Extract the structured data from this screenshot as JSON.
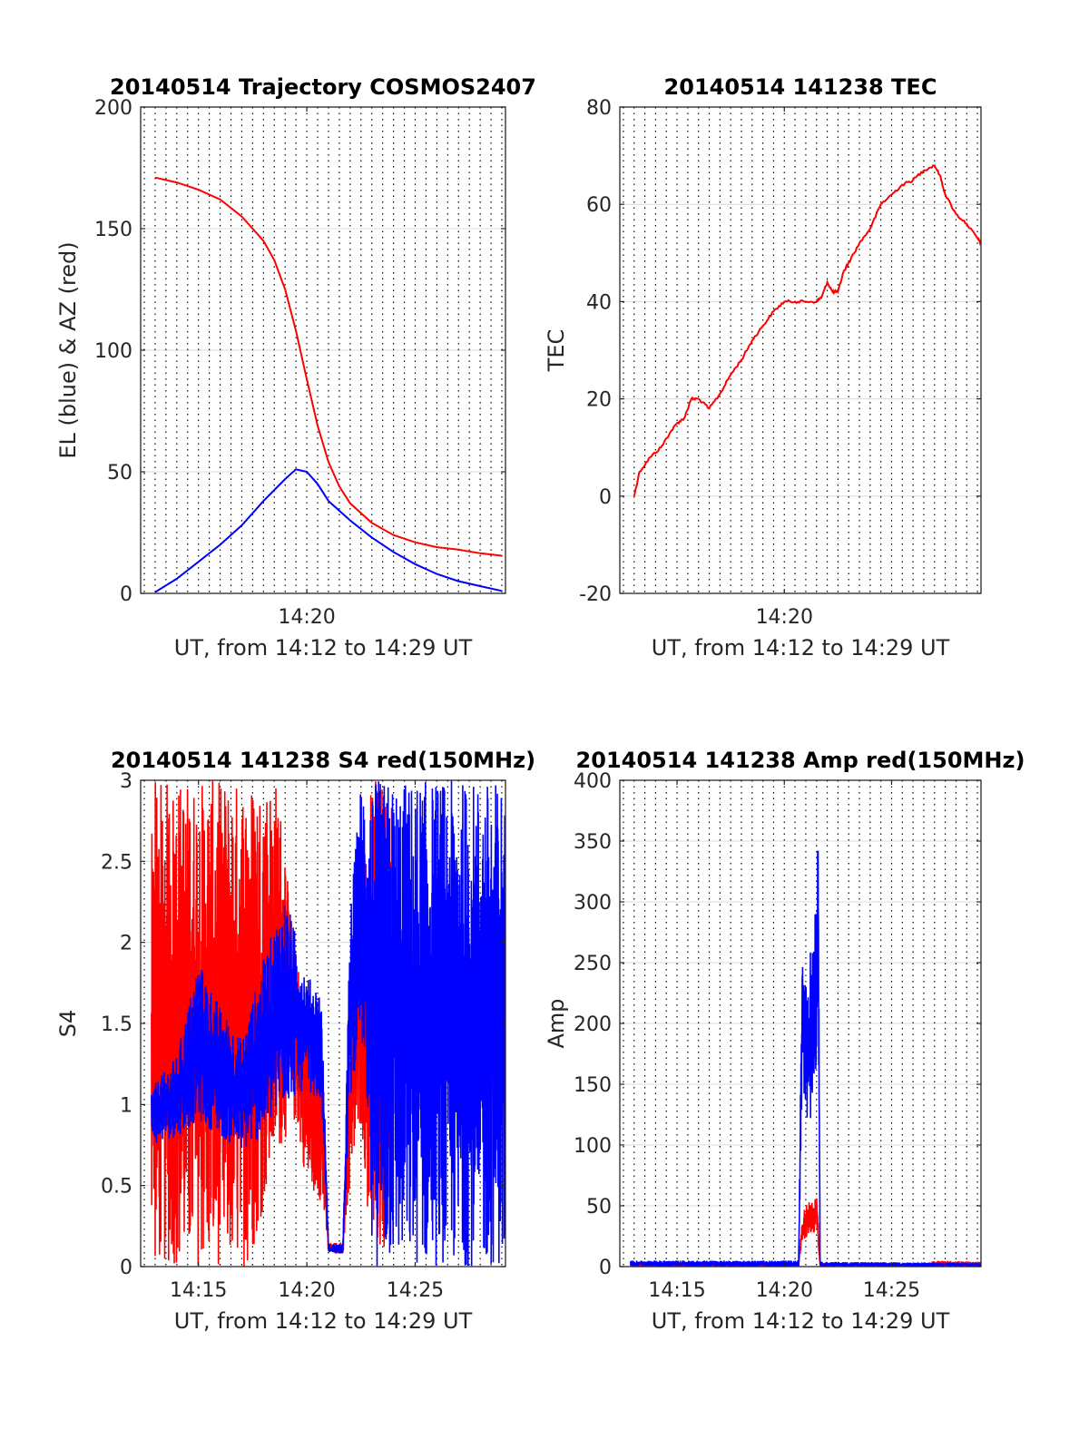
{
  "chart_data": [
    {
      "id": "traj",
      "type": "line",
      "title": "20140514 Trajectory COSMOS2407",
      "xlabel": "UT, from 14:12 to 14:29 UT",
      "ylabel": "EL (blue) & AZ (red)",
      "xlim": [
        "14:12:20",
        "14:29:10"
      ],
      "ylim": [
        0,
        200
      ],
      "yticks": [
        0,
        50,
        100,
        150,
        200
      ],
      "xticks": [
        {
          "t": "14:20",
          "label": "14:20"
        }
      ],
      "grid": "dotted vertical lines every 30 s, solid horizontal lines at y ticks",
      "series": [
        {
          "color": "#ff0000",
          "points": [
            [
              "14:13:00",
              171
            ],
            [
              "14:14:00",
              169
            ],
            [
              "14:15:00",
              166
            ],
            [
              "14:16:00",
              162
            ],
            [
              "14:17:00",
              155
            ],
            [
              "14:18:00",
              145
            ],
            [
              "14:18:30",
              137
            ],
            [
              "14:19:00",
              125
            ],
            [
              "14:19:30",
              108
            ],
            [
              "14:20:00",
              88
            ],
            [
              "14:20:30",
              69
            ],
            [
              "14:21:00",
              54
            ],
            [
              "14:21:30",
              44
            ],
            [
              "14:22:00",
              37
            ],
            [
              "14:23:00",
              29
            ],
            [
              "14:24:00",
              24
            ],
            [
              "14:25:00",
              21
            ],
            [
              "14:26:00",
              19
            ],
            [
              "14:27:00",
              18
            ],
            [
              "14:28:00",
              16.5
            ],
            [
              "14:29:00",
              15.5
            ]
          ]
        },
        {
          "color": "#0000ff",
          "points": [
            [
              "14:13:00",
              0.5
            ],
            [
              "14:14:00",
              6
            ],
            [
              "14:15:00",
              13
            ],
            [
              "14:16:00",
              20
            ],
            [
              "14:17:00",
              28
            ],
            [
              "14:18:00",
              38
            ],
            [
              "14:19:00",
              47
            ],
            [
              "14:19:30",
              51
            ],
            [
              "14:20:00",
              50
            ],
            [
              "14:20:30",
              45
            ],
            [
              "14:21:00",
              38
            ],
            [
              "14:22:00",
              30
            ],
            [
              "14:23:00",
              23
            ],
            [
              "14:24:00",
              17
            ],
            [
              "14:25:00",
              12
            ],
            [
              "14:26:00",
              8
            ],
            [
              "14:27:00",
              5
            ],
            [
              "14:28:00",
              3
            ],
            [
              "14:29:00",
              1
            ]
          ]
        }
      ]
    },
    {
      "id": "tec",
      "type": "line",
      "title": "20140514 141238 TEC",
      "xlabel": "UT, from 14:12 to 14:29 UT",
      "ylabel": "TEC",
      "xlim": [
        "14:12:20",
        "14:29:10"
      ],
      "ylim": [
        -20,
        80
      ],
      "yticks": [
        -20,
        0,
        20,
        40,
        60,
        80
      ],
      "xticks": [
        {
          "t": "14:20",
          "label": "14:20"
        }
      ],
      "grid": "dotted vertical lines every 30 s, solid horizontal lines at y ticks",
      "series": [
        {
          "color": "#ff0000",
          "points": [
            [
              "14:13:00",
              0
            ],
            [
              "14:13:15",
              5
            ],
            [
              "14:13:45",
              8
            ],
            [
              "14:14:15",
              10
            ],
            [
              "14:14:40",
              13
            ],
            [
              "14:15:00",
              15
            ],
            [
              "14:15:20",
              16
            ],
            [
              "14:15:40",
              20
            ],
            [
              "14:16:00",
              20
            ],
            [
              "14:16:30",
              18
            ],
            [
              "14:17:00",
              21
            ],
            [
              "14:17:30",
              25
            ],
            [
              "14:18:00",
              28
            ],
            [
              "14:18:30",
              32
            ],
            [
              "14:19:00",
              35
            ],
            [
              "14:19:30",
              38
            ],
            [
              "14:20:00",
              40
            ],
            [
              "14:20:30",
              40
            ],
            [
              "14:21:00",
              40
            ],
            [
              "14:21:30",
              40
            ],
            [
              "14:21:45",
              41
            ],
            [
              "14:22:00",
              44
            ],
            [
              "14:22:15",
              42
            ],
            [
              "14:22:30",
              42
            ],
            [
              "14:22:45",
              46
            ],
            [
              "14:23:00",
              48
            ],
            [
              "14:23:30",
              52
            ],
            [
              "14:24:00",
              55
            ],
            [
              "14:24:30",
              60
            ],
            [
              "14:25:00",
              62
            ],
            [
              "14:25:30",
              64
            ],
            [
              "14:26:00",
              65
            ],
            [
              "14:26:30",
              67
            ],
            [
              "14:27:00",
              68
            ],
            [
              "14:27:15",
              66
            ],
            [
              "14:27:30",
              62
            ],
            [
              "14:28:00",
              58
            ],
            [
              "14:28:30",
              56
            ],
            [
              "14:29:00",
              53
            ],
            [
              "14:29:10",
              52
            ]
          ]
        }
      ]
    },
    {
      "id": "s4",
      "type": "line",
      "title": "20140514 141238 S4 red(150MHz)",
      "xlabel": "UT, from 14:12 to 14:29 UT",
      "ylabel": "S4",
      "xlim": [
        "14:12:20",
        "14:29:10"
      ],
      "ylim": [
        0,
        3
      ],
      "yticks": [
        0,
        0.5,
        1,
        1.5,
        2,
        2.5,
        3
      ],
      "xticks": [
        {
          "t": "14:15",
          "label": "14:15"
        },
        {
          "t": "14:20",
          "label": "14:20"
        },
        {
          "t": "14:25",
          "label": "14:25"
        }
      ],
      "grid": "dotted vertical lines every 30 s, solid horizontal lines at y ticks",
      "series": [
        {
          "color": "#ff0000",
          "profile": [
            [
              "14:12:50",
              0,
              3
            ],
            [
              "14:17:20",
              0,
              3
            ],
            [
              "14:18:40",
              0.7,
              3
            ],
            [
              "14:19:30",
              0.9,
              1.9
            ],
            [
              "14:20:00",
              0.5,
              1.6
            ],
            [
              "14:20:40",
              0.4,
              1.5
            ],
            [
              "14:21:00",
              0.08,
              0.15
            ],
            [
              "14:21:40",
              0.08,
              0.15
            ],
            [
              "14:22:00",
              0.5,
              1.4
            ],
            [
              "14:22:30",
              0.9,
              2.3
            ],
            [
              "14:23:00",
              0,
              3
            ],
            [
              "14:24:00",
              0,
              3
            ]
          ]
        },
        {
          "color": "#0000ff",
          "profile": [
            [
              "14:12:50",
              0.75,
              1.1
            ],
            [
              "14:14:00",
              0.8,
              1.3
            ],
            [
              "14:15:00",
              0.9,
              1.9
            ],
            [
              "14:16:00",
              0.8,
              1.6
            ],
            [
              "14:17:00",
              0.7,
              1.4
            ],
            [
              "14:18:00",
              0.8,
              1.9
            ],
            [
              "14:19:00",
              1.0,
              2.3
            ],
            [
              "14:20:00",
              1.1,
              1.8
            ],
            [
              "14:20:40",
              1.0,
              1.7
            ],
            [
              "14:21:00",
              0.08,
              0.14
            ],
            [
              "14:21:40",
              0.08,
              0.14
            ],
            [
              "14:22:00",
              1.0,
              2.2
            ],
            [
              "14:22:30",
              1.5,
              3
            ],
            [
              "14:23:00",
              0,
              3
            ],
            [
              "14:29:10",
              0,
              3
            ]
          ]
        }
      ]
    },
    {
      "id": "amp",
      "type": "line",
      "title": "20140514 141238 Amp red(150MHz)",
      "xlabel": "UT, from 14:12 to 14:29 UT",
      "ylabel": "Amp",
      "xlim": [
        "14:12:20",
        "14:29:10"
      ],
      "ylim": [
        0,
        400
      ],
      "yticks": [
        0,
        50,
        100,
        150,
        200,
        250,
        300,
        350,
        400
      ],
      "xticks": [
        {
          "t": "14:15",
          "label": "14:15"
        },
        {
          "t": "14:20",
          "label": "14:20"
        },
        {
          "t": "14:25",
          "label": "14:25"
        }
      ],
      "grid": "dotted vertical lines every 30 s, solid horizontal lines at y ticks",
      "series": [
        {
          "color": "#ff0000",
          "profile": [
            [
              "14:12:50",
              0,
              2
            ],
            [
              "14:20:40",
              0,
              2
            ],
            [
              "14:20:50",
              20,
              45
            ],
            [
              "14:21:10",
              25,
              55
            ],
            [
              "14:21:30",
              30,
              62
            ],
            [
              "14:21:40",
              0,
              3
            ],
            [
              "14:26:30",
              0,
              2
            ],
            [
              "14:27:00",
              0,
              5
            ],
            [
              "14:29:10",
              0,
              4
            ]
          ]
        },
        {
          "color": "#0000ff",
          "profile": [
            [
              "14:12:50",
              0,
              5
            ],
            [
              "14:20:40",
              0,
              5
            ],
            [
              "14:20:50",
              150,
              270
            ],
            [
              "14:21:10",
              110,
              250
            ],
            [
              "14:21:30",
              160,
              320
            ],
            [
              "14:21:35",
              200,
              390
            ],
            [
              "14:21:40",
              0,
              4
            ],
            [
              "14:29:10",
              0,
              3
            ]
          ]
        }
      ]
    }
  ]
}
